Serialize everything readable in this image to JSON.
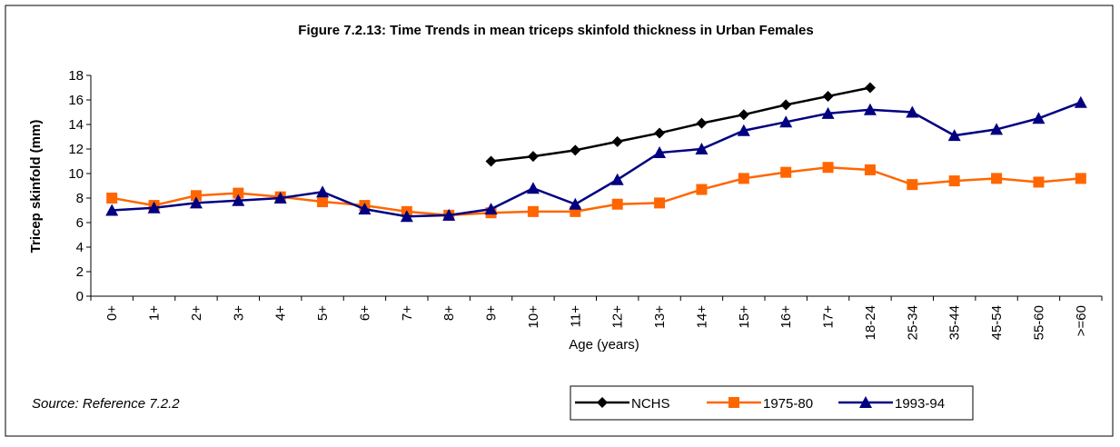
{
  "chart_data": {
    "type": "line",
    "title": "Figure 7.2.13:  Time Trends in mean triceps skinfold thickness in Urban Females",
    "x_label": "Age (years)",
    "y_label": "Tricep skinfold (mm)",
    "source": "Source: Reference 7.2.2",
    "categories": [
      "0+",
      "1+",
      "2+",
      "3+",
      "4+",
      "5+",
      "6+",
      "7+",
      "8+",
      "9+",
      "10+",
      "11+",
      "12+",
      "13+",
      "14+",
      "15+",
      "16+",
      "17+",
      "18-24",
      "25-34",
      "35-44",
      "45-54",
      "55-60",
      ">=60"
    ],
    "series": [
      {
        "name": "NCHS",
        "color": "#000000",
        "marker": "diamond",
        "values": [
          null,
          null,
          null,
          null,
          null,
          null,
          null,
          null,
          null,
          11.0,
          11.4,
          11.9,
          12.6,
          13.3,
          14.1,
          14.8,
          15.6,
          16.3,
          17.0,
          null,
          null,
          null,
          null,
          null
        ]
      },
      {
        "name": "1975-80",
        "color": "#ff6600",
        "marker": "square",
        "values": [
          8.0,
          7.4,
          8.2,
          8.4,
          8.1,
          7.7,
          7.4,
          6.9,
          6.6,
          6.8,
          6.9,
          6.9,
          7.5,
          7.6,
          8.7,
          9.6,
          10.1,
          10.5,
          10.3,
          9.1,
          9.4,
          9.6,
          9.3,
          9.6
        ]
      },
      {
        "name": "1993-94",
        "color": "#000080",
        "marker": "triangle",
        "values": [
          7.0,
          7.2,
          7.6,
          7.8,
          8.0,
          8.5,
          7.1,
          6.5,
          6.6,
          7.1,
          8.8,
          7.5,
          9.5,
          11.7,
          12.0,
          13.5,
          14.2,
          14.9,
          15.2,
          15.0,
          13.1,
          13.6,
          14.5,
          15.8
        ]
      }
    ],
    "ylim": [
      0,
      18
    ],
    "yticks": [
      0,
      2,
      4,
      6,
      8,
      10,
      12,
      14,
      16,
      18
    ]
  }
}
